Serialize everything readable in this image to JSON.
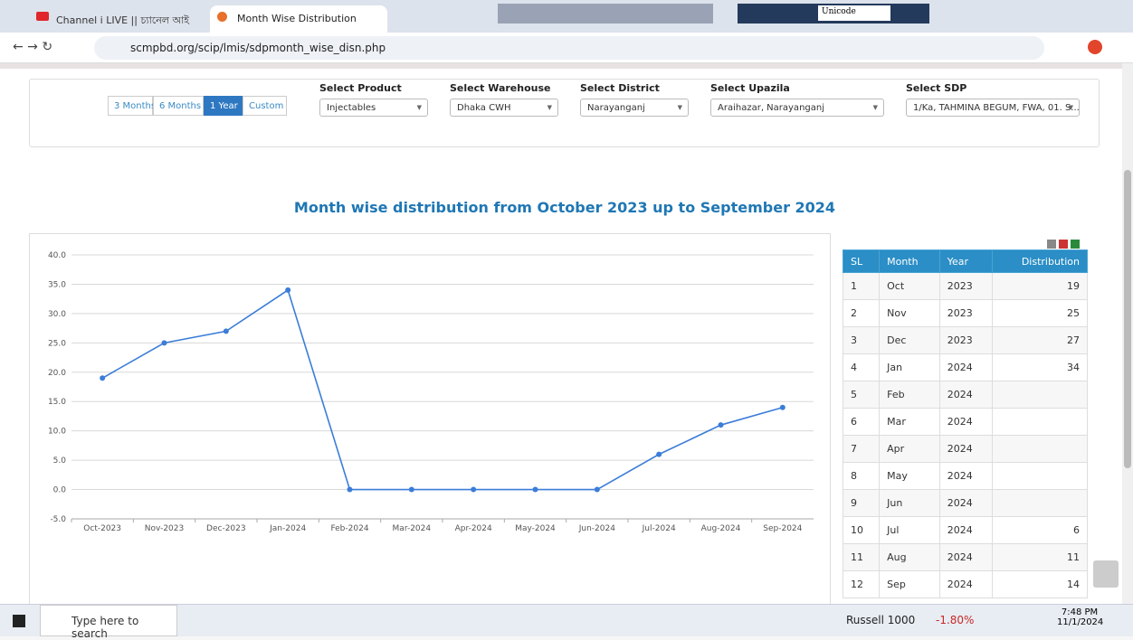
{
  "browser": {
    "tabs": [
      "Channel i LIVE || চ্যানেল আই",
      "Month Wise Distribution"
    ],
    "url": "scmpbd.org/scip/lmis/sdpmonth_wise_disn.php",
    "ime": "Unicode"
  },
  "filters": {
    "periods": [
      "3 Months",
      "6 Months",
      "1 Year",
      "Custom"
    ],
    "selects": [
      {
        "label": "Select Product",
        "value": "Injectables"
      },
      {
        "label": "Select Warehouse",
        "value": "Dhaka CWH"
      },
      {
        "label": "Select District",
        "value": "Narayanganj"
      },
      {
        "label": "Select Upazila",
        "value": "Araihazar, Narayanganj"
      },
      {
        "label": "Select SDP",
        "value": "1/Ka, TAHMINA BEGUM, FWA, 01. S..."
      }
    ]
  },
  "chart_data": {
    "type": "line",
    "title": "Month wise distribution from October 2023 up to September 2024",
    "categories": [
      "Oct-2023",
      "Nov-2023",
      "Dec-2023",
      "Jan-2024",
      "Feb-2024",
      "Mar-2024",
      "Apr-2024",
      "May-2024",
      "Jun-2024",
      "Jul-2024",
      "Aug-2024",
      "Sep-2024"
    ],
    "series": [
      {
        "color": "#3b7dd8",
        "values": [
          19,
          25,
          27,
          34,
          0,
          0,
          0,
          0,
          0,
          6,
          11,
          14
        ]
      }
    ],
    "ylim": [
      -5,
      40
    ],
    "yticks": [
      {
        "value": -5,
        "label": "-5.0"
      },
      {
        "value": 0,
        "label": "0.0"
      },
      {
        "value": 5,
        "label": "5.0"
      },
      {
        "value": 10,
        "label": "10.0"
      },
      {
        "value": 15,
        "label": "15.0"
      },
      {
        "value": 20,
        "label": "20.0"
      },
      {
        "value": 25,
        "label": "25.0"
      },
      {
        "value": 30,
        "label": "30.0"
      },
      {
        "value": 35,
        "label": "35.0"
      },
      {
        "value": 40,
        "label": "40.0"
      }
    ],
    "grid": true
  },
  "table": {
    "headers": [
      "SL",
      "Month",
      "Year",
      "Distribution"
    ],
    "rows": [
      [
        1,
        "Oct",
        2023,
        19
      ],
      [
        2,
        "Nov",
        2023,
        25
      ],
      [
        3,
        "Dec",
        2023,
        27
      ],
      [
        4,
        "Jan",
        2024,
        34
      ],
      [
        5,
        "Feb",
        2024,
        null
      ],
      [
        6,
        "Mar",
        2024,
        null
      ],
      [
        7,
        "Apr",
        2024,
        null
      ],
      [
        8,
        "May",
        2024,
        null
      ],
      [
        9,
        "Jun",
        2024,
        null
      ],
      [
        10,
        "Jul",
        2024,
        6
      ],
      [
        11,
        "Aug",
        2024,
        11
      ],
      [
        12,
        "Sep",
        2024,
        14
      ]
    ]
  },
  "taskbar": {
    "search": "Type here to search",
    "ticker": "Russell 1000",
    "change": "-1.80%",
    "time": "7:48 PM",
    "date": "11/1/2024"
  }
}
